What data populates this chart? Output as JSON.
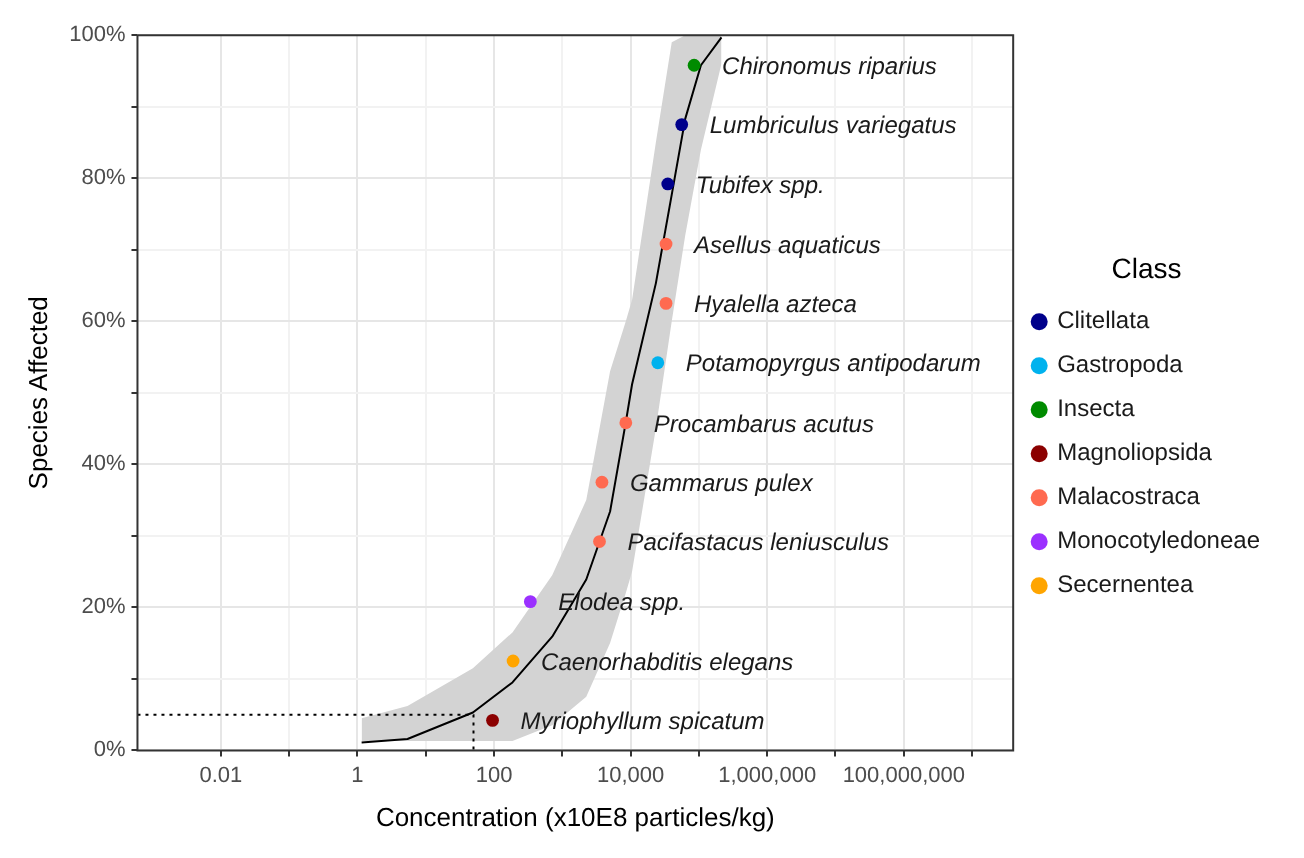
{
  "chart_data": {
    "type": "scatter",
    "xlabel": "Concentration (x10E8 particles/kg)",
    "ylabel": "Species Affected",
    "legend_title": "Class",
    "log": "x",
    "grid": true,
    "legend": "right",
    "marker": "circle",
    "xlim": [
      0.0006,
      4000000000
    ],
    "xticks": [
      {
        "value": 0.01,
        "label": "0.01"
      },
      {
        "value": 0.1,
        "label": null
      },
      {
        "value": 1,
        "label": "1"
      },
      {
        "value": 10,
        "label": null
      },
      {
        "value": 100,
        "label": "100"
      },
      {
        "value": 1000,
        "label": null
      },
      {
        "value": 10000,
        "label": "10,000"
      },
      {
        "value": 100000,
        "label": null
      },
      {
        "value": 1000000,
        "label": "1,000,000"
      },
      {
        "value": 10000000,
        "label": null
      },
      {
        "value": 100000000,
        "label": "100,000,000"
      },
      {
        "value": 1000000000,
        "label": null
      }
    ],
    "ylim": [
      0,
      100
    ],
    "yticks": [
      {
        "value": 0,
        "label": "0%"
      },
      {
        "value": 10,
        "label": null
      },
      {
        "value": 20,
        "label": "20%"
      },
      {
        "value": 30,
        "label": null
      },
      {
        "value": 40,
        "label": "40%"
      },
      {
        "value": 50,
        "label": null
      },
      {
        "value": 60,
        "label": "60%"
      },
      {
        "value": 70,
        "label": null
      },
      {
        "value": 80,
        "label": "80%"
      },
      {
        "value": 90,
        "label": null
      },
      {
        "value": 100,
        "label": "100%"
      }
    ],
    "series": [
      {
        "type": "line",
        "color": "#000000",
        "marker": "none",
        "line_style": "solid",
        "x": [
          1.15,
          5.4,
          49,
          186,
          710,
          2240,
          5000,
          8500,
          10500,
          23400,
          40000,
          63000,
          107000,
          214000
        ],
        "values": [
          1.1,
          1.6,
          5.3,
          9.5,
          15.9,
          23.9,
          33.4,
          45.9,
          51.2,
          65.3,
          77.7,
          88.3,
          95.8,
          99.7
        ],
        "lower": [
          1.3,
          1.3,
          1.3,
          1.3,
          3.5,
          7.5,
          15,
          22,
          25,
          45,
          60,
          72,
          84,
          96
        ],
        "upper": [
          4.5,
          6.2,
          11.5,
          16.5,
          24.5,
          35,
          53,
          60,
          63,
          85,
          99,
          100,
          100,
          100
        ]
      },
      {
        "type": "line",
        "color": "#000000",
        "marker": "none",
        "line_style": "dotted",
        "x": [
          0.0006,
          50,
          50
        ],
        "values": [
          5,
          5,
          0
        ]
      },
      {
        "name": "Clitellata",
        "color": "#00008b",
        "x": [
          35000,
          56000
        ],
        "values": [
          79.2,
          87.5
        ]
      },
      {
        "name": "Gastropoda",
        "color": "#00b2ee",
        "x": [
          25000
        ],
        "values": [
          54.2
        ]
      },
      {
        "name": "Insecta",
        "color": "#008b00",
        "x": [
          85000
        ],
        "values": [
          95.8
        ]
      },
      {
        "name": "Magnoliopsida",
        "color": "#8b0000",
        "x": [
          95
        ],
        "values": [
          4.2
        ]
      },
      {
        "name": "Malacostraca",
        "color": "#ff6a50",
        "x": [
          3500,
          3800,
          8500,
          33000,
          33000
        ],
        "values": [
          29.2,
          37.5,
          45.8,
          62.5,
          70.8
        ]
      },
      {
        "name": "Monocotyledoneae",
        "color": "#9b30ff",
        "x": [
          340
        ],
        "values": [
          20.8
        ]
      },
      {
        "name": "Secernentea",
        "color": "#ffa500",
        "x": [
          190
        ],
        "values": [
          12.5
        ]
      }
    ],
    "annotations": [
      {
        "text": "Myriophyllum spicatum",
        "x": 95,
        "y": 4.2
      },
      {
        "text": "Caenorhabditis elegans",
        "x": 190,
        "y": 12.5
      },
      {
        "text": "Elodea spp.",
        "x": 340,
        "y": 20.8
      },
      {
        "text": "Pacifastacus leniusculus",
        "x": 3500,
        "y": 29.2
      },
      {
        "text": "Gammarus pulex",
        "x": 3800,
        "y": 37.5
      },
      {
        "text": "Procambarus acutus",
        "x": 8500,
        "y": 45.8
      },
      {
        "text": "Potamopyrgus antipodarum",
        "x": 25000,
        "y": 54.2
      },
      {
        "text": "Hyalella azteca",
        "x": 33000,
        "y": 62.5
      },
      {
        "text": "Asellus aquaticus",
        "x": 33000,
        "y": 70.8
      },
      {
        "text": "Tubifex spp.",
        "x": 35000,
        "y": 79.2
      },
      {
        "text": "Lumbriculus variegatus",
        "x": 56000,
        "y": 87.5
      },
      {
        "text": "Chironomus riparius",
        "x": 85000,
        "y": 95.8
      }
    ]
  }
}
